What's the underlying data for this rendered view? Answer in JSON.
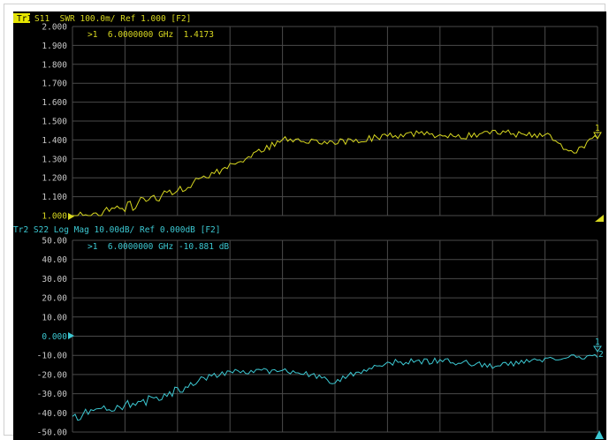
{
  "colors": {
    "background": "#000000",
    "grid": "#4a4a4a",
    "trace1": "#d8d820",
    "trace2": "#3cc8d2",
    "active_trace_badge_bg": "#e6e600",
    "active_trace_badge_fg": "#000000",
    "marker_text_trace1": "#d8d820",
    "marker_text_trace2": "#3cc8d2",
    "axis_text": "#c8c8c8"
  },
  "trace1": {
    "header": {
      "badge": "Tr1",
      "rest": "S11  SWR 100.0m/ Ref 1.000 [F2]"
    },
    "marker_readout": ">1  6.0000000 GHz  1.4173",
    "marker_label": "1",
    "ytick_labels": [
      "2.000",
      "1.900",
      "1.800",
      "1.700",
      "1.600",
      "1.500",
      "1.400",
      "1.300",
      "1.200",
      "1.100",
      "1.000"
    ],
    "ref_value_label": "1.000"
  },
  "trace2": {
    "header": "Tr2 S22 Log Mag 10.00dB/ Ref 0.000dB [F2]",
    "marker_readout": ">1  6.0000000 GHz -10.881 dB",
    "marker_label_a": "1",
    "marker_label_b": "2",
    "ytick_labels": [
      "50.00",
      "40.00",
      "30.00",
      "20.00",
      "10.00",
      "0.000",
      "-10.00",
      "-20.00",
      "-30.00",
      "-40.00",
      "-50.00"
    ],
    "ref_value_label": "0.000"
  },
  "chart_data": [
    {
      "type": "line",
      "trace": "Tr1",
      "parameter": "S11",
      "format": "SWR",
      "scale_per_div": "100.0m",
      "reference": 1.0,
      "ylim": [
        1.0,
        2.0
      ],
      "x_fraction": [
        0,
        0.05,
        0.1,
        0.15,
        0.2,
        0.25,
        0.3,
        0.35,
        0.4,
        0.45,
        0.5,
        0.55,
        0.6,
        0.65,
        0.7,
        0.75,
        0.8,
        0.85,
        0.9,
        0.95,
        1.0
      ],
      "values": [
        1.0,
        1.01,
        1.04,
        1.09,
        1.14,
        1.2,
        1.26,
        1.33,
        1.4,
        1.4,
        1.39,
        1.4,
        1.42,
        1.43,
        1.43,
        1.42,
        1.45,
        1.43,
        1.43,
        1.33,
        1.42
      ]
    },
    {
      "type": "line",
      "trace": "Tr2",
      "parameter": "S22",
      "format": "Log Mag",
      "scale_per_div": "10.00dB",
      "reference": 0.0,
      "ylim": [
        -50,
        50
      ],
      "x_fraction": [
        0,
        0.05,
        0.1,
        0.15,
        0.2,
        0.25,
        0.3,
        0.35,
        0.4,
        0.45,
        0.5,
        0.55,
        0.6,
        0.65,
        0.7,
        0.75,
        0.8,
        0.85,
        0.9,
        0.95,
        1.0
      ],
      "values": [
        -42,
        -39,
        -36,
        -33,
        -28,
        -22,
        -19,
        -18,
        -18,
        -20,
        -24,
        -18,
        -14,
        -13,
        -13,
        -14,
        -16,
        -14,
        -12,
        -11,
        -10.9
      ]
    }
  ]
}
